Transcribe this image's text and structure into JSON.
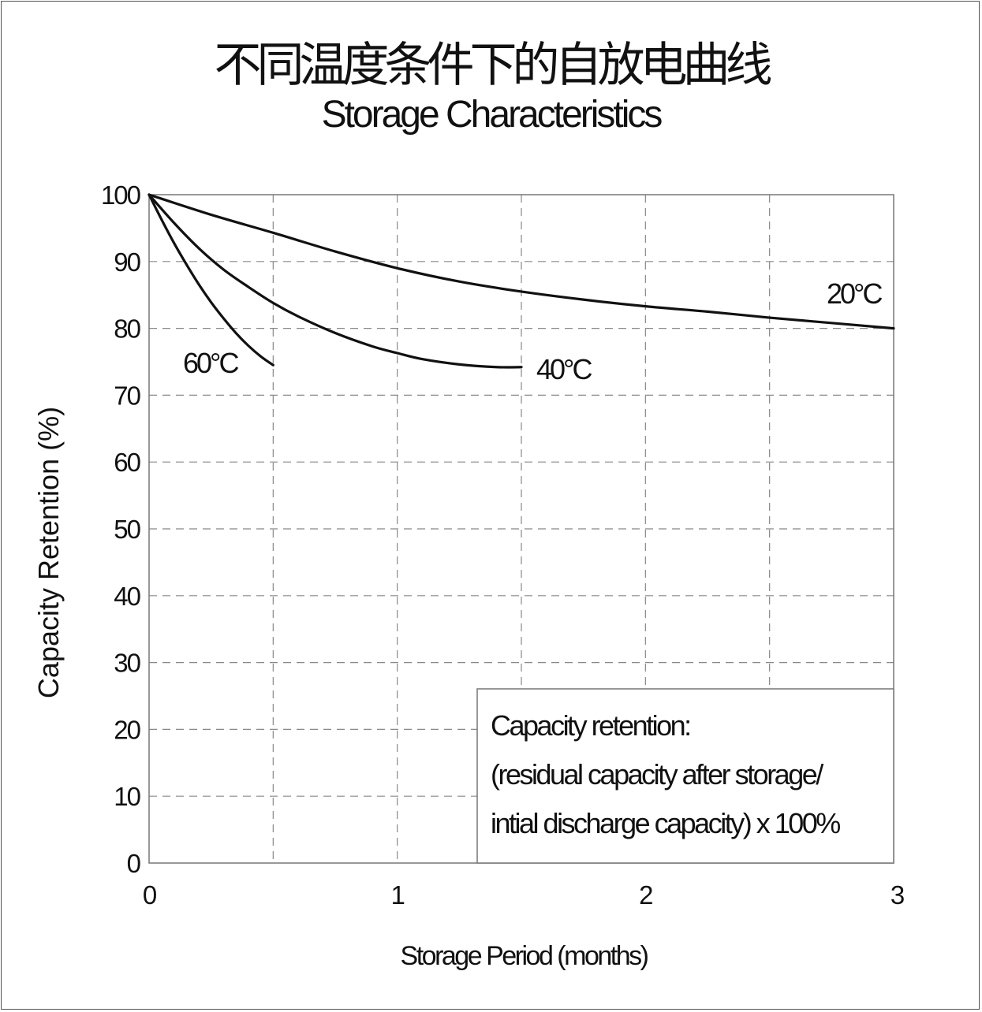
{
  "title_cn": "不同温度条件下的自放电曲线",
  "title_en": "Storage Characteristics",
  "chart_data": {
    "type": "line",
    "xlabel": "Storage Period (months)",
    "ylabel": "Capacity Retention (%)",
    "xlim": [
      0,
      3
    ],
    "ylim": [
      0,
      100
    ],
    "x_ticks": [
      "0",
      "1",
      "2",
      "3"
    ],
    "y_ticks": [
      "0",
      "10",
      "20",
      "30",
      "40",
      "50",
      "60",
      "70",
      "80",
      "90",
      "100"
    ],
    "grid": true,
    "series": [
      {
        "name": "20°C",
        "x": [
          0,
          0.25,
          0.5,
          0.75,
          1.0,
          1.25,
          1.5,
          1.75,
          2.0,
          2.25,
          2.5,
          2.75,
          3.0
        ],
        "y": [
          100,
          97,
          94.3,
          91.5,
          89,
          87,
          85.5,
          84.3,
          83.3,
          82.5,
          81.6,
          80.8,
          80
        ]
      },
      {
        "name": "40°C",
        "x": [
          0,
          0.1,
          0.2,
          0.3,
          0.4,
          0.5,
          0.6,
          0.75,
          0.9,
          1.0,
          1.1,
          1.25,
          1.4,
          1.5
        ],
        "y": [
          100,
          95.8,
          92,
          88.8,
          86.2,
          83.8,
          81.8,
          79.3,
          77.3,
          76.3,
          75.4,
          74.6,
          74.2,
          74.2
        ]
      },
      {
        "name": "60°C",
        "x": [
          0,
          0.05,
          0.1,
          0.15,
          0.2,
          0.25,
          0.3,
          0.35,
          0.4,
          0.45,
          0.5
        ],
        "y": [
          100,
          96.3,
          92.8,
          89.6,
          86.6,
          83.9,
          81.5,
          79.3,
          77.4,
          75.8,
          74.5
        ]
      }
    ],
    "annotation": [
      "Capacity retention:",
      "(residual capacity after storage/",
      "intial discharge capacity) x 100%"
    ]
  }
}
